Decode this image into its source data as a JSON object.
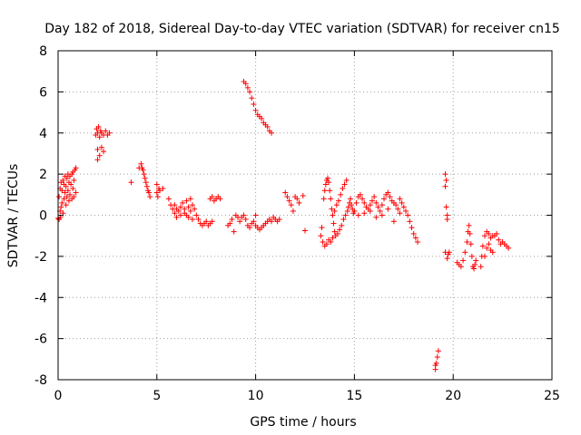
{
  "chart_data": {
    "type": "scatter",
    "title": "Day 182 of 2018, Sidereal Day-to-day VTEC variation (SDTVAR) for receiver cn15",
    "xlabel": "GPS time / hours",
    "ylabel": "SDTVAR / TECUs",
    "xlim": [
      0,
      25
    ],
    "ylim": [
      -8,
      8
    ],
    "xticks": [
      0,
      5,
      10,
      15,
      20,
      25
    ],
    "yticks": [
      -8,
      -6,
      -4,
      -2,
      0,
      2,
      4,
      6,
      8
    ],
    "grid": true,
    "marker": "+",
    "marker_color": "#ff0000",
    "series": [
      {
        "name": "SDTVAR",
        "points": [
          [
            0.0,
            -0.15
          ],
          [
            0.05,
            0.9
          ],
          [
            0.05,
            -0.2
          ],
          [
            0.1,
            1.3
          ],
          [
            0.1,
            0.2
          ],
          [
            0.12,
            -0.1
          ],
          [
            0.15,
            1.6
          ],
          [
            0.15,
            0.4
          ],
          [
            0.2,
            1.2
          ],
          [
            0.2,
            0.6
          ],
          [
            0.25,
            1.7
          ],
          [
            0.25,
            0.1
          ],
          [
            0.3,
            1.5
          ],
          [
            0.3,
            0.8
          ],
          [
            0.35,
            1.9
          ],
          [
            0.35,
            1.1
          ],
          [
            0.4,
            1.4
          ],
          [
            0.4,
            0.5
          ],
          [
            0.45,
            1.8
          ],
          [
            0.45,
            0.9
          ],
          [
            0.5,
            2.0
          ],
          [
            0.5,
            1.2
          ],
          [
            0.55,
            1.6
          ],
          [
            0.55,
            0.7
          ],
          [
            0.6,
            1.9
          ],
          [
            0.6,
            1.0
          ],
          [
            0.65,
            1.5
          ],
          [
            0.7,
            2.0
          ],
          [
            0.7,
            0.8
          ],
          [
            0.75,
            2.1
          ],
          [
            0.75,
            1.3
          ],
          [
            0.8,
            1.7
          ],
          [
            0.8,
            0.9
          ],
          [
            0.85,
            2.2
          ],
          [
            0.9,
            2.3
          ],
          [
            0.9,
            1.1
          ],
          [
            1.9,
            3.9
          ],
          [
            1.95,
            4.2
          ],
          [
            2.0,
            4.0
          ],
          [
            2.0,
            3.2
          ],
          [
            2.05,
            4.3
          ],
          [
            2.1,
            3.8
          ],
          [
            2.1,
            2.9
          ],
          [
            2.15,
            4.1
          ],
          [
            2.2,
            3.3
          ],
          [
            2.2,
            4.0
          ],
          [
            2.3,
            3.9
          ],
          [
            2.3,
            3.1
          ],
          [
            2.4,
            4.1
          ],
          [
            2.5,
            3.9
          ],
          [
            2.6,
            4.0
          ],
          [
            2.0,
            2.7
          ],
          [
            3.7,
            1.6
          ],
          [
            4.1,
            2.3
          ],
          [
            4.2,
            2.5
          ],
          [
            4.25,
            2.3
          ],
          [
            4.3,
            2.2
          ],
          [
            4.35,
            2.0
          ],
          [
            4.4,
            1.8
          ],
          [
            4.45,
            1.6
          ],
          [
            4.5,
            1.4
          ],
          [
            4.55,
            1.2
          ],
          [
            4.6,
            1.1
          ],
          [
            4.65,
            0.9
          ],
          [
            5.0,
            1.5
          ],
          [
            5.0,
            1.1
          ],
          [
            5.05,
            0.9
          ],
          [
            5.1,
            1.3
          ],
          [
            5.15,
            1.2
          ],
          [
            5.3,
            1.3
          ],
          [
            5.6,
            0.8
          ],
          [
            5.7,
            0.5
          ],
          [
            5.8,
            0.3
          ],
          [
            5.9,
            0.1
          ],
          [
            6.0,
            -0.1
          ],
          [
            6.1,
            0.2
          ],
          [
            6.2,
            0.4
          ],
          [
            6.3,
            0.6
          ],
          [
            6.4,
            0.3
          ],
          [
            6.5,
            0.0
          ],
          [
            6.5,
            0.7
          ],
          [
            6.6,
            0.4
          ],
          [
            6.7,
            0.8
          ],
          [
            6.7,
            0.2
          ],
          [
            6.8,
            0.5
          ],
          [
            6.9,
            0.3
          ],
          [
            7.0,
            0.0
          ],
          [
            7.1,
            -0.2
          ],
          [
            7.2,
            -0.4
          ],
          [
            7.3,
            -0.5
          ],
          [
            7.4,
            -0.4
          ],
          [
            7.5,
            -0.3
          ],
          [
            7.6,
            -0.5
          ],
          [
            7.7,
            -0.4
          ],
          [
            7.8,
            -0.3
          ],
          [
            5.9,
            0.5
          ],
          [
            6.0,
            0.3
          ],
          [
            6.2,
            0.0
          ],
          [
            6.4,
            0.1
          ],
          [
            6.6,
            -0.1
          ],
          [
            6.8,
            -0.2
          ],
          [
            7.7,
            0.8
          ],
          [
            7.8,
            0.9
          ],
          [
            7.9,
            0.7
          ],
          [
            8.0,
            0.8
          ],
          [
            8.1,
            0.9
          ],
          [
            8.2,
            0.8
          ],
          [
            8.6,
            -0.5
          ],
          [
            8.7,
            -0.4
          ],
          [
            8.8,
            -0.2
          ],
          [
            8.9,
            -0.8
          ],
          [
            9.0,
            0.0
          ],
          [
            9.1,
            -0.1
          ],
          [
            9.2,
            -0.3
          ],
          [
            9.3,
            -0.1
          ],
          [
            9.4,
            0.0
          ],
          [
            9.5,
            -0.2
          ],
          [
            9.6,
            -0.5
          ],
          [
            9.7,
            -0.6
          ],
          [
            9.8,
            -0.4
          ],
          [
            9.9,
            -0.3
          ],
          [
            10.0,
            -0.5
          ],
          [
            10.1,
            -0.6
          ],
          [
            10.2,
            -0.7
          ],
          [
            10.3,
            -0.6
          ],
          [
            10.4,
            -0.5
          ],
          [
            10.5,
            -0.4
          ],
          [
            10.6,
            -0.3
          ],
          [
            10.7,
            -0.2
          ],
          [
            10.8,
            -0.3
          ],
          [
            10.9,
            -0.1
          ],
          [
            11.0,
            -0.2
          ],
          [
            11.1,
            -0.3
          ],
          [
            11.2,
            -0.2
          ],
          [
            10.0,
            0.0
          ],
          [
            9.4,
            6.5
          ],
          [
            9.5,
            6.4
          ],
          [
            9.6,
            6.2
          ],
          [
            9.7,
            6.0
          ],
          [
            9.8,
            5.7
          ],
          [
            9.9,
            5.4
          ],
          [
            10.0,
            5.1
          ],
          [
            10.1,
            4.9
          ],
          [
            10.2,
            4.8
          ],
          [
            10.3,
            4.7
          ],
          [
            10.4,
            4.5
          ],
          [
            10.5,
            4.4
          ],
          [
            10.6,
            4.3
          ],
          [
            10.7,
            4.1
          ],
          [
            10.8,
            4.0
          ],
          [
            11.5,
            1.1
          ],
          [
            11.6,
            0.9
          ],
          [
            11.7,
            0.7
          ],
          [
            11.8,
            0.5
          ],
          [
            11.9,
            0.2
          ],
          [
            12.0,
            0.9
          ],
          [
            12.1,
            0.8
          ],
          [
            12.2,
            0.6
          ],
          [
            12.4,
            0.95
          ],
          [
            12.5,
            -0.75
          ],
          [
            13.3,
            -1.0
          ],
          [
            13.35,
            -0.6
          ],
          [
            13.4,
            -1.3
          ],
          [
            13.45,
            0.8
          ],
          [
            13.5,
            1.2
          ],
          [
            13.5,
            -1.5
          ],
          [
            13.55,
            1.5
          ],
          [
            13.6,
            1.7
          ],
          [
            13.6,
            -1.4
          ],
          [
            13.65,
            1.8
          ],
          [
            13.7,
            1.6
          ],
          [
            13.7,
            -1.2
          ],
          [
            13.75,
            1.2
          ],
          [
            13.8,
            0.8
          ],
          [
            13.8,
            -1.3
          ],
          [
            13.85,
            0.3
          ],
          [
            13.9,
            0.0
          ],
          [
            13.9,
            -1.1
          ],
          [
            13.95,
            -0.4
          ],
          [
            14.0,
            -0.8
          ],
          [
            14.0,
            0.2
          ],
          [
            14.05,
            -1.0
          ],
          [
            14.1,
            0.5
          ],
          [
            14.15,
            -0.9
          ],
          [
            14.2,
            0.7
          ],
          [
            14.25,
            -0.7
          ],
          [
            14.3,
            1.0
          ],
          [
            14.35,
            -0.5
          ],
          [
            14.4,
            1.3
          ],
          [
            14.45,
            -0.2
          ],
          [
            14.5,
            1.5
          ],
          [
            14.55,
            0.0
          ],
          [
            14.6,
            1.7
          ],
          [
            14.65,
            0.2
          ],
          [
            14.7,
            0.4
          ],
          [
            14.75,
            0.6
          ],
          [
            14.8,
            0.8
          ],
          [
            14.85,
            0.5
          ],
          [
            14.9,
            0.3
          ],
          [
            14.95,
            0.1
          ],
          [
            15.0,
            0.2
          ],
          [
            15.1,
            0.6
          ],
          [
            15.2,
            0.9
          ],
          [
            15.3,
            1.0
          ],
          [
            15.4,
            0.8
          ],
          [
            15.5,
            0.6
          ],
          [
            15.6,
            0.4
          ],
          [
            15.7,
            0.3
          ],
          [
            15.8,
            0.5
          ],
          [
            15.9,
            0.7
          ],
          [
            16.0,
            0.9
          ],
          [
            16.1,
            0.6
          ],
          [
            16.2,
            0.4
          ],
          [
            16.3,
            0.2
          ],
          [
            16.4,
            0.5
          ],
          [
            16.5,
            0.8
          ],
          [
            16.6,
            1.0
          ],
          [
            16.7,
            1.1
          ],
          [
            16.8,
            0.9
          ],
          [
            16.9,
            0.7
          ],
          [
            17.0,
            0.6
          ],
          [
            17.1,
            0.5
          ],
          [
            17.2,
            0.3
          ],
          [
            17.3,
            0.8
          ],
          [
            17.4,
            0.6
          ],
          [
            17.5,
            0.4
          ],
          [
            17.6,
            0.2
          ],
          [
            17.7,
            0.0
          ],
          [
            17.8,
            -0.3
          ],
          [
            17.9,
            -0.6
          ],
          [
            18.0,
            -0.9
          ],
          [
            18.1,
            -1.1
          ],
          [
            18.2,
            -1.3
          ],
          [
            15.2,
            0.0
          ],
          [
            15.5,
            0.1
          ],
          [
            15.8,
            0.2
          ],
          [
            16.1,
            -0.1
          ],
          [
            16.4,
            0.0
          ],
          [
            16.7,
            0.3
          ],
          [
            17.0,
            -0.3
          ],
          [
            17.3,
            0.1
          ],
          [
            19.1,
            -7.5
          ],
          [
            19.15,
            -7.2
          ],
          [
            19.2,
            -6.9
          ],
          [
            19.25,
            -6.6
          ],
          [
            19.1,
            -7.3
          ],
          [
            19.6,
            2.0
          ],
          [
            19.65,
            1.7
          ],
          [
            19.6,
            1.4
          ],
          [
            19.65,
            0.4
          ],
          [
            19.7,
            0.0
          ],
          [
            19.7,
            -0.2
          ],
          [
            19.6,
            -1.8
          ],
          [
            19.7,
            -2.1
          ],
          [
            19.8,
            -1.8
          ],
          [
            19.75,
            -1.9
          ],
          [
            20.2,
            -2.3
          ],
          [
            20.3,
            -2.4
          ],
          [
            20.4,
            -2.5
          ],
          [
            20.5,
            -2.2
          ],
          [
            20.6,
            -1.8
          ],
          [
            20.7,
            -1.3
          ],
          [
            20.75,
            -0.8
          ],
          [
            20.8,
            -0.5
          ],
          [
            20.85,
            -0.9
          ],
          [
            20.9,
            -1.4
          ],
          [
            20.95,
            -2.0
          ],
          [
            21.0,
            -2.5
          ],
          [
            21.05,
            -2.6
          ],
          [
            21.1,
            -2.4
          ],
          [
            21.15,
            -2.2
          ],
          [
            21.4,
            -2.5
          ],
          [
            21.45,
            -2.0
          ],
          [
            21.5,
            -1.5
          ],
          [
            21.6,
            -1.0
          ],
          [
            21.7,
            -0.8
          ],
          [
            21.8,
            -0.9
          ],
          [
            21.9,
            -1.1
          ],
          [
            22.0,
            -1.0
          ],
          [
            22.1,
            -1.0
          ],
          [
            22.2,
            -0.9
          ],
          [
            22.3,
            -1.2
          ],
          [
            22.4,
            -1.4
          ],
          [
            22.5,
            -1.3
          ],
          [
            22.6,
            -1.4
          ],
          [
            22.7,
            -1.5
          ],
          [
            22.8,
            -1.6
          ],
          [
            21.6,
            -2.0
          ],
          [
            21.7,
            -1.6
          ],
          [
            21.8,
            -1.4
          ],
          [
            21.9,
            -1.7
          ],
          [
            22.0,
            -1.8
          ]
        ]
      }
    ]
  }
}
